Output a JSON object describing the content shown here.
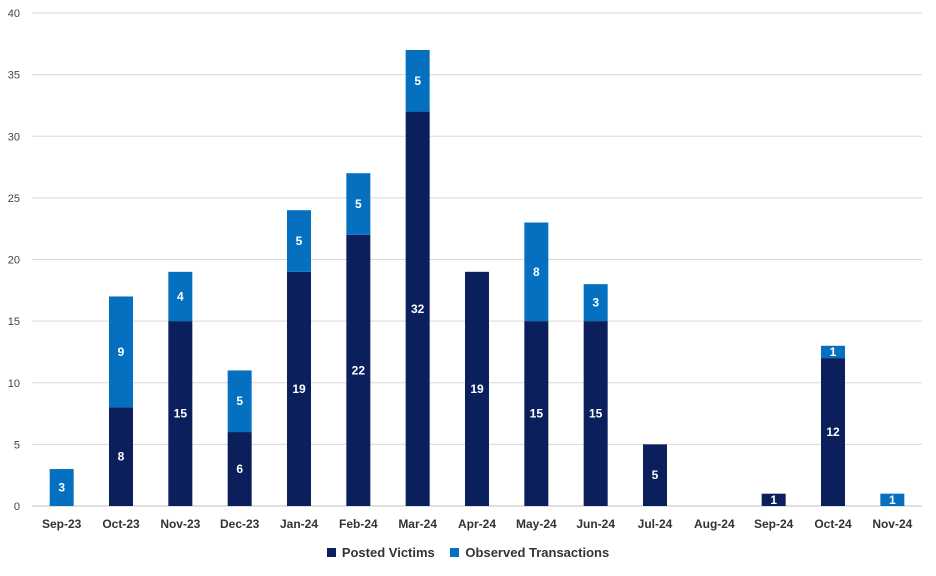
{
  "chart_data": {
    "type": "bar",
    "stacked": true,
    "categories": [
      "Sep-23",
      "Oct-23",
      "Nov-23",
      "Dec-23",
      "Jan-24",
      "Feb-24",
      "Mar-24",
      "Apr-24",
      "May-24",
      "Jun-24",
      "Jul-24",
      "Aug-24",
      "Sep-24",
      "Oct-24",
      "Nov-24"
    ],
    "series": [
      {
        "name": "Posted Victims",
        "color": "#0a1f5c",
        "values": [
          0,
          8,
          15,
          6,
          19,
          22,
          32,
          19,
          15,
          15,
          5,
          0,
          1,
          12,
          0
        ]
      },
      {
        "name": "Observed Transactions",
        "color": "#0570c0",
        "values": [
          3,
          9,
          4,
          5,
          5,
          5,
          5,
          0,
          8,
          3,
          0,
          0,
          0,
          1,
          1
        ]
      }
    ],
    "ylim": [
      0,
      40
    ],
    "yticks": [
      0,
      5,
      10,
      15,
      20,
      25,
      30,
      35,
      40
    ],
    "grid": true,
    "legend_position": "bottom",
    "title": "",
    "xlabel": "",
    "ylabel": ""
  }
}
